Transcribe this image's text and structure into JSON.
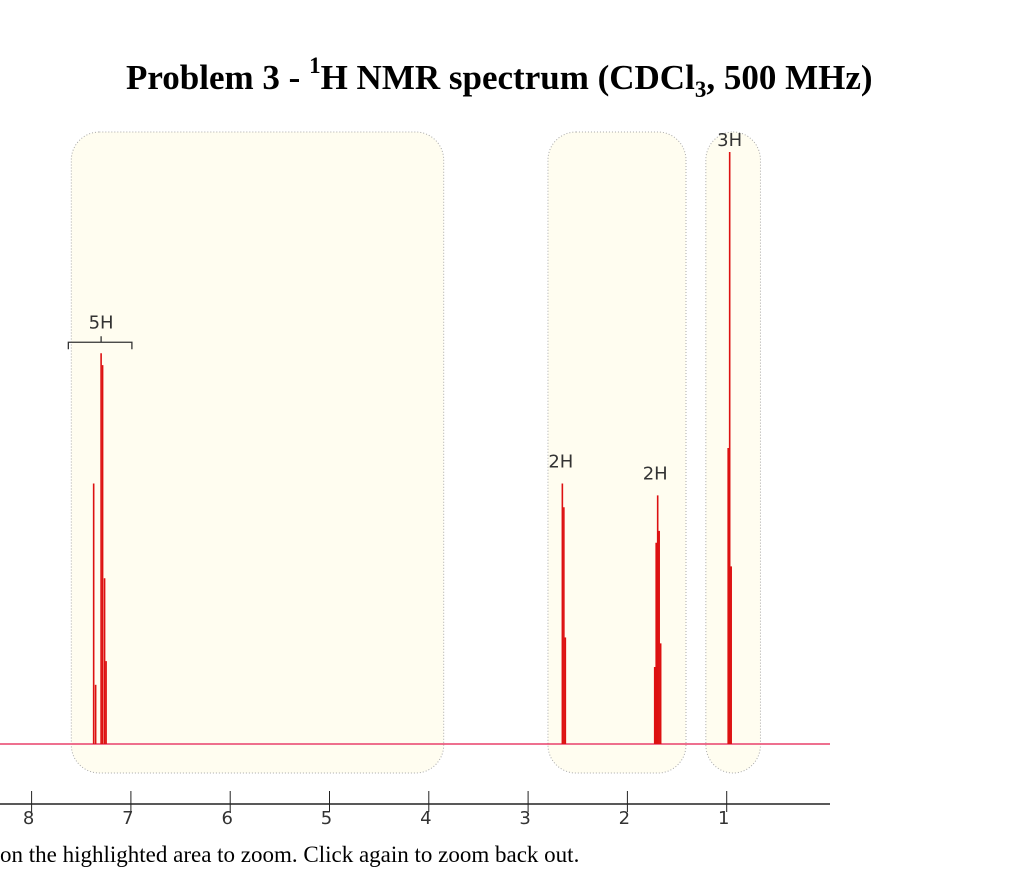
{
  "title": {
    "prefix": "Problem 3 - ",
    "sup": "1",
    "main": "H NMR spectrum (CDCl",
    "sub": "3",
    "suffix": ", 500 MHz)"
  },
  "instruction": "on the highlighted area to zoom. Click again to zoom back out.",
  "colors": {
    "trace": "#dd1111",
    "baseline": "#e8406a",
    "zone_fill": "#fffdf0"
  },
  "chart_data": {
    "type": "line",
    "title": "Problem 3 - 1H NMR spectrum (CDCl3, 500 MHz)",
    "xlabel": "",
    "ylabel": "",
    "x_reversed": true,
    "xlim": [
      8.3,
      0.0
    ],
    "ylim": [
      0,
      1
    ],
    "ticks": [
      8,
      7,
      6,
      5,
      4,
      3,
      2,
      1
    ],
    "zoom_regions": [
      [
        7.6,
        3.85
      ],
      [
        2.8,
        1.41
      ],
      [
        1.21,
        0.66
      ]
    ],
    "integrations": [
      {
        "label": "5H",
        "ppm": 7.3,
        "bracket": [
          7.63,
          6.99
        ]
      },
      {
        "label": "2H",
        "ppm": 2.67
      },
      {
        "label": "2H",
        "ppm": 1.72
      },
      {
        "label": "3H",
        "ppm": 0.97
      }
    ],
    "peaks": [
      {
        "ppm": 7.375,
        "height": 0.44
      },
      {
        "ppm": 7.355,
        "height": 0.1
      },
      {
        "ppm": 7.3,
        "height": 0.66
      },
      {
        "ppm": 7.285,
        "height": 0.64
      },
      {
        "ppm": 7.265,
        "height": 0.28
      },
      {
        "ppm": 7.25,
        "height": 0.14
      },
      {
        "ppm": 2.655,
        "height": 0.44
      },
      {
        "ppm": 2.64,
        "height": 0.4
      },
      {
        "ppm": 2.625,
        "height": 0.18
      },
      {
        "ppm": 1.725,
        "height": 0.13
      },
      {
        "ppm": 1.71,
        "height": 0.34
      },
      {
        "ppm": 1.695,
        "height": 0.42
      },
      {
        "ppm": 1.68,
        "height": 0.36
      },
      {
        "ppm": 1.665,
        "height": 0.17
      },
      {
        "ppm": 0.985,
        "height": 0.5
      },
      {
        "ppm": 0.97,
        "height": 1.0
      },
      {
        "ppm": 0.955,
        "height": 0.3
      }
    ]
  }
}
